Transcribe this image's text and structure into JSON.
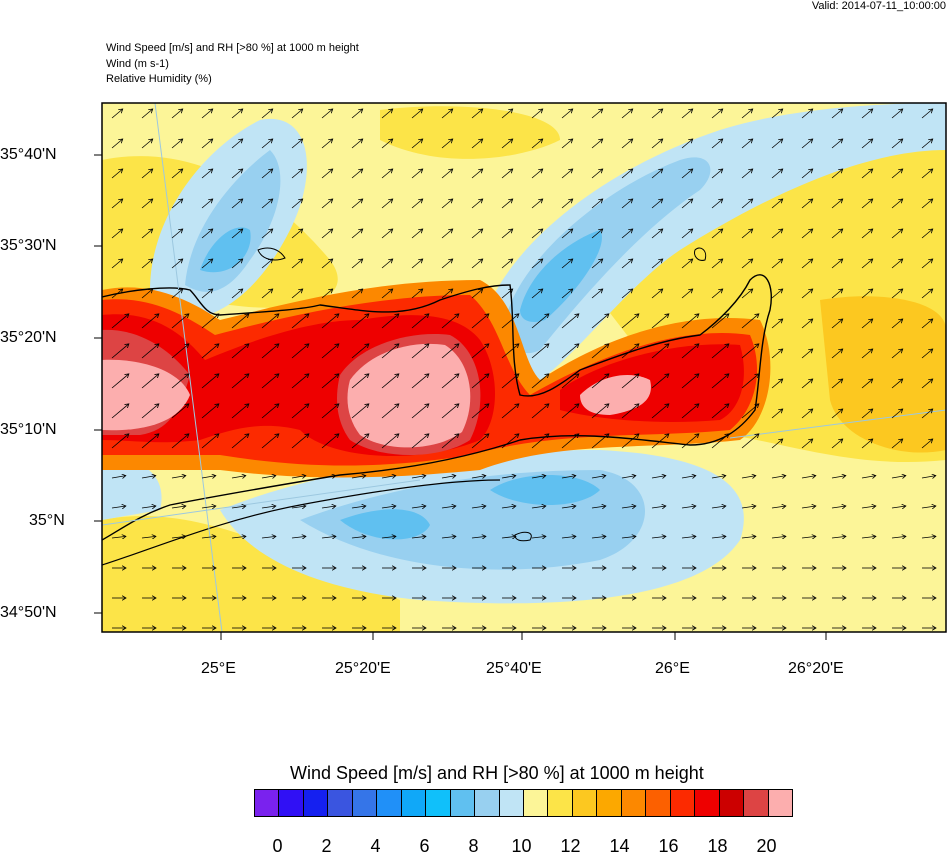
{
  "header": {
    "valid": "Valid: 2014-07-11_10:00:00",
    "title_lines": [
      "Wind Speed [m/s] and RH [>80 %] at 1000 m height",
      "Wind   (m s-1)",
      "Relative Humidity   (%)"
    ]
  },
  "chart_data": {
    "type": "heatmap",
    "title": "Wind Speed [m/s] and RH [>80 %] at 1000 m height",
    "lat_ticks": [
      "35°40'N",
      "35°30'N",
      "35°20'N",
      "35°10'N",
      "35°N",
      "34°50'N"
    ],
    "lon_ticks": [
      "25°E",
      "25°20'E",
      "25°40'E",
      "26°E",
      "26°20'E"
    ],
    "overlay": "wind vectors (m s-1)",
    "colorbar": {
      "title": "Wind Speed [m/s] and RH [>80 %] at 1000 m height",
      "labels": [
        "0",
        "2",
        "4",
        "6",
        "8",
        "10",
        "12",
        "14",
        "16",
        "18",
        "20"
      ],
      "colors": [
        "#7a22ee",
        "#3010f5",
        "#1520f0",
        "#3a55e0",
        "#3575e8",
        "#2090f8",
        "#10a8f8",
        "#10c0fa",
        "#60c0f0",
        "#98d0f0",
        "#c0e4f5",
        "#fcf598",
        "#fce448",
        "#fcc820",
        "#fca800",
        "#fc8800",
        "#fc6000",
        "#fc2a00",
        "#ee0000",
        "#cc0000",
        "#dd4444",
        "#fcaeae"
      ]
    }
  }
}
